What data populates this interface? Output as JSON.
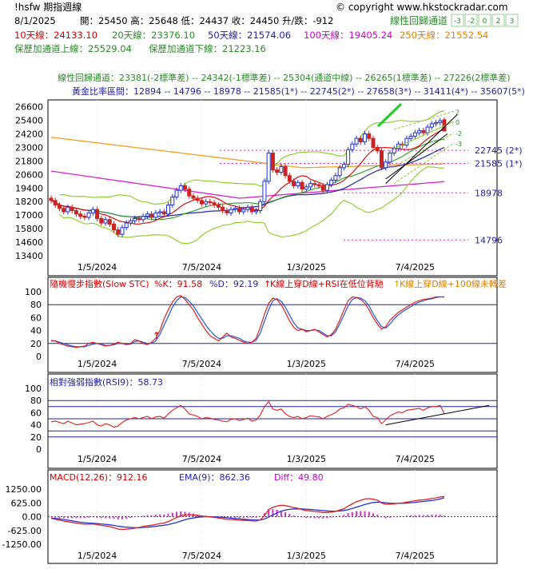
{
  "header": {
    "symbol": "!hsfw 期指週線",
    "copyright": "© copyright www.hkstockradar.com",
    "date": "8/1/2025",
    "ohlc": "開：25450  高：25648  低：24437  收：24450  升/跌：-912",
    "ma10": "10天線：24133.10",
    "ma20": "20天線：23376.10",
    "ma50": "50天線：21574.06",
    "ma100": "100天線：19405.24",
    "ma250": "250天線：21552.54",
    "band_upper": "保歷加通道上線：25529.04",
    "band_lower": "保歷加通道下線：21223.16",
    "lr_title": "線性回歸通道",
    "lr_buttons": [
      "-3",
      "-2",
      "0",
      "2",
      "3"
    ],
    "lr_values": "線性回歸通道：23381(-2標準差) -- 24342(-1標準差) -- 25304(通道中線) -- 26265(1標準差) -- 27226(2標準差)",
    "fib_values": "黃金比率區間：12894 -- 14796 -- 18978 -- 21585(1*) -- 22745(2*) -- 27658(3*) -- 31411(4*) -- 35607(5*)"
  },
  "colors": {
    "up": "#2233cc",
    "down": "#cc2222",
    "ma10": "#d40000",
    "ma20": "#2a9a2a",
    "ma50": "#2222aa",
    "ma100": "#dd22cc",
    "ma250": "#f0a020",
    "band": "#88cc22",
    "fib": "#dd22cc",
    "text_red": "#d40000",
    "text_green": "#2a8a2a",
    "text_blue": "#2222cc",
    "text_magenta": "#cc00cc",
    "text_orange": "#e08000"
  },
  "chart_data": [
    {
      "type": "candlestick",
      "title": "!hsfw 期指週線",
      "ylim": [
        13400,
        27000
      ],
      "y_ticks": [
        26600,
        25400,
        24200,
        23000,
        21800,
        20600,
        19400,
        18200,
        17000,
        15800,
        14600,
        13400
      ],
      "x_ticks": [
        "1/5/2024",
        "7/5/2024",
        "1/3/2025",
        "7/4/2025"
      ],
      "fib_labels": [
        "22745 (2*)",
        "21585 (1*)",
        "18978",
        "14796"
      ],
      "fib_levels": [
        22745,
        21585,
        18978,
        14796
      ],
      "lr_channel_labels": [
        "2",
        "0",
        "-2",
        "-3"
      ],
      "close": [
        18300,
        17900,
        17600,
        17300,
        17700,
        17400,
        17100,
        16900,
        16800,
        17200,
        17500,
        16700,
        16300,
        16600,
        16200,
        15700,
        15300,
        15900,
        16300,
        16500,
        16700,
        16600,
        16900,
        17100,
        16800,
        17200,
        17300,
        17100,
        17900,
        18600,
        19200,
        19600,
        19300,
        18700,
        18500,
        18300,
        18000,
        18200,
        18100,
        17900,
        17700,
        17400,
        17200,
        17500,
        17600,
        17300,
        17500,
        17700,
        17300,
        17400,
        18200,
        20000,
        22500,
        21000,
        20800,
        21300,
        20500,
        20000,
        19600,
        19900,
        19300,
        19500,
        19800,
        19700,
        19600,
        19200,
        19700,
        20100,
        20500,
        21200,
        21500,
        22800,
        23300,
        23800,
        23500,
        24200,
        23800,
        23000,
        22700,
        21200,
        21700,
        22500,
        22900,
        23300,
        23200,
        23800,
        24000,
        24300,
        24500,
        24300,
        24800,
        25100,
        25200,
        25362,
        24450
      ],
      "last": {
        "open": 25450,
        "high": 25648,
        "low": 24437,
        "close": 24450,
        "change": -912
      }
    },
    {
      "type": "line",
      "title": "隨機慢步指數(Slow STC)",
      "series": [
        {
          "name": "%K",
          "last": 91.58
        },
        {
          "name": "%D",
          "last": 92.19
        }
      ],
      "y_ticks": [
        100,
        80,
        60,
        40,
        20,
        0
      ],
      "ylim": [
        0,
        100
      ],
      "k_label": "%K：91.58",
      "d_label": "%D：92.19",
      "signal1": "K線上穿D線+RSI在低位背馳",
      "signal2": "K線上穿D線+100線未轉差",
      "k": [
        25,
        24,
        20,
        18,
        16,
        15,
        14,
        15,
        16,
        20,
        22,
        20,
        18,
        16,
        17,
        19,
        22,
        20,
        18,
        20,
        26,
        24,
        20,
        18,
        22,
        28,
        40,
        58,
        72,
        84,
        92,
        94,
        88,
        80,
        72,
        60,
        50,
        40,
        32,
        28,
        24,
        30,
        36,
        30,
        28,
        25,
        22,
        20,
        22,
        28,
        45,
        65,
        82,
        90,
        88,
        80,
        68,
        55,
        45,
        40,
        42,
        38,
        40,
        42,
        38,
        34,
        30,
        34,
        42,
        56,
        72,
        86,
        92,
        91,
        88,
        82,
        72,
        60,
        50,
        42,
        46,
        56,
        62,
        68,
        72,
        76,
        80,
        84,
        86,
        88,
        89,
        90,
        92,
        92,
        91.58
      ],
      "d": [
        24,
        24,
        22,
        20,
        18,
        16,
        15,
        15,
        15,
        17,
        19,
        20,
        19,
        17,
        17,
        18,
        20,
        20,
        19,
        19,
        23,
        24,
        22,
        20,
        20,
        24,
        34,
        48,
        62,
        76,
        86,
        92,
        91,
        85,
        78,
        68,
        58,
        48,
        40,
        33,
        28,
        28,
        32,
        32,
        30,
        28,
        24,
        22,
        22,
        25,
        36,
        54,
        72,
        86,
        89,
        85,
        76,
        64,
        52,
        44,
        42,
        40,
        40,
        41,
        40,
        36,
        32,
        32,
        38,
        50,
        64,
        78,
        88,
        91,
        90,
        86,
        78,
        66,
        55,
        46,
        44,
        50,
        58,
        64,
        69,
        73,
        77,
        81,
        84,
        86,
        88,
        89,
        91,
        92,
        92.19
      ]
    },
    {
      "type": "line",
      "title": "相對強弱指數(RSI9)",
      "series": [
        {
          "name": "RSI9",
          "last": 58.73
        }
      ],
      "y_ticks": [
        100,
        80,
        60,
        40,
        20,
        0
      ],
      "ylim": [
        0,
        100
      ],
      "label": "相對強弱指數(RSI9)：58.73",
      "rsi": [
        45,
        46,
        44,
        42,
        46,
        43,
        40,
        41,
        42,
        44,
        46,
        40,
        38,
        42,
        40,
        36,
        38,
        44,
        48,
        50,
        52,
        50,
        52,
        54,
        50,
        53,
        54,
        51,
        58,
        64,
        68,
        72,
        66,
        58,
        56,
        54,
        50,
        52,
        51,
        49,
        48,
        46,
        45,
        49,
        50,
        47,
        49,
        51,
        46,
        48,
        56,
        70,
        78,
        66,
        64,
        66,
        58,
        54,
        52,
        54,
        50,
        52,
        55,
        54,
        53,
        50,
        54,
        57,
        60,
        66,
        68,
        74,
        72,
        70,
        66,
        70,
        64,
        54,
        52,
        42,
        48,
        55,
        58,
        61,
        60,
        64,
        65,
        66,
        67,
        64,
        68,
        70,
        70,
        72,
        58.73
      ]
    },
    {
      "type": "line",
      "title": "MACD(12,26)",
      "series": [
        {
          "name": "MACD(12,26)",
          "last": 912.16
        },
        {
          "name": "EMA(9)",
          "last": 862.36
        },
        {
          "name": "Diff",
          "last": 49.8
        }
      ],
      "y_ticks": [
        1250,
        625,
        0,
        -625,
        -1250
      ],
      "ylim": [
        -1250,
        1250
      ],
      "macd_label": "MACD(12,26)：912.16",
      "ema_label": "EMA(9)：862.36",
      "diff_label": "Diff：49.80",
      "macd": [
        -80,
        -120,
        -160,
        -200,
        -230,
        -260,
        -290,
        -320,
        -340,
        -340,
        -330,
        -360,
        -400,
        -420,
        -450,
        -500,
        -560,
        -580,
        -570,
        -550,
        -520,
        -490,
        -450,
        -410,
        -390,
        -350,
        -310,
        -290,
        -220,
        -130,
        -40,
        40,
        80,
        90,
        80,
        60,
        30,
        10,
        -10,
        -30,
        -60,
        -90,
        -120,
        -130,
        -140,
        -160,
        -170,
        -170,
        -190,
        -200,
        -150,
        50,
        320,
        420,
        480,
        520,
        500,
        460,
        410,
        380,
        320,
        280,
        260,
        240,
        220,
        190,
        190,
        210,
        240,
        300,
        360,
        480,
        580,
        680,
        740,
        800,
        820,
        790,
        750,
        620,
        560,
        560,
        580,
        610,
        620,
        660,
        690,
        720,
        750,
        760,
        790,
        820,
        850,
        890,
        912.16
      ],
      "ema": [
        -60,
        -80,
        -100,
        -130,
        -160,
        -190,
        -220,
        -250,
        -270,
        -290,
        -300,
        -310,
        -330,
        -350,
        -370,
        -400,
        -430,
        -460,
        -480,
        -490,
        -500,
        -500,
        -490,
        -480,
        -460,
        -440,
        -410,
        -390,
        -360,
        -310,
        -260,
        -200,
        -140,
        -90,
        -60,
        -30,
        -10,
        0,
        0,
        -5,
        -15,
        -30,
        -50,
        -70,
        -85,
        -100,
        -115,
        -125,
        -140,
        -150,
        -150,
        -110,
        -20,
        80,
        170,
        250,
        300,
        330,
        350,
        355,
        350,
        340,
        325,
        310,
        295,
        275,
        260,
        250,
        250,
        260,
        280,
        320,
        370,
        430,
        490,
        550,
        600,
        640,
        660,
        650,
        630,
        610,
        600,
        600,
        605,
        615,
        630,
        650,
        670,
        690,
        710,
        730,
        760,
        800,
        862.36
      ]
    }
  ]
}
